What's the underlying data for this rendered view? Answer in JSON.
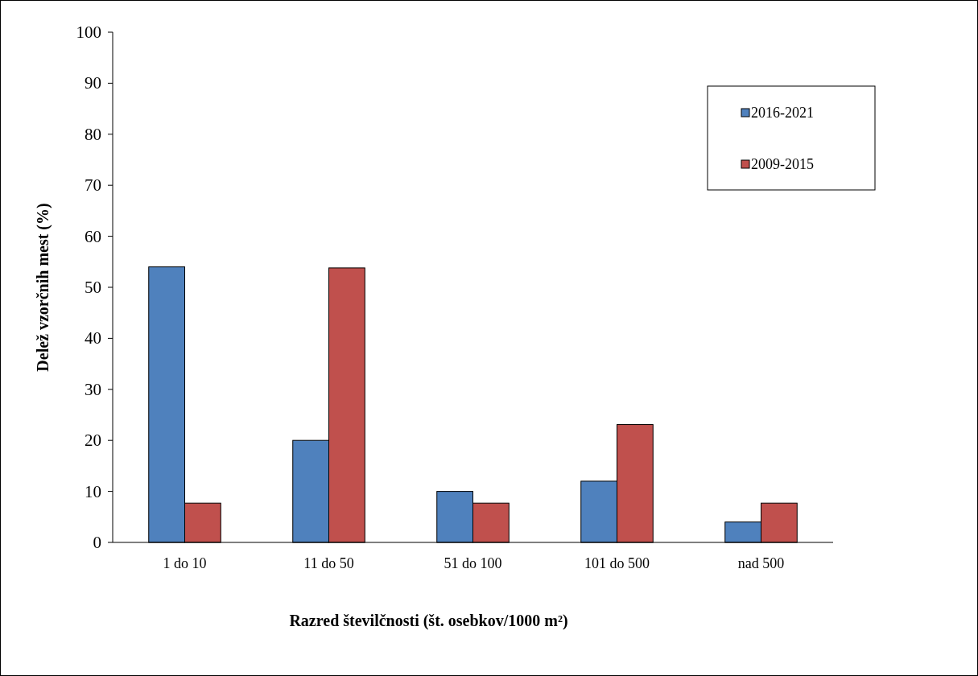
{
  "chart_data": {
    "type": "bar",
    "xlabel": "Razred številčnosti (št. osebkov/1000 m²)",
    "ylabel": "Delež vzorčnih mest (%)",
    "categories": [
      "1 do 10",
      "11 do 50",
      "51 do 100",
      "101 do 500",
      "nad 500"
    ],
    "series": [
      {
        "name": "2016-2021",
        "color": "#4f81bd",
        "values": [
          54,
          20,
          10,
          12,
          4
        ]
      },
      {
        "name": "2009-2015",
        "color": "#c0504d",
        "values": [
          7.7,
          53.8,
          7.7,
          23.1,
          7.7
        ]
      }
    ],
    "ylim": [
      0,
      100
    ],
    "yticks": [
      0,
      10,
      20,
      30,
      40,
      50,
      60,
      70,
      80,
      90,
      100
    ],
    "grid": false,
    "legend": "top right"
  }
}
